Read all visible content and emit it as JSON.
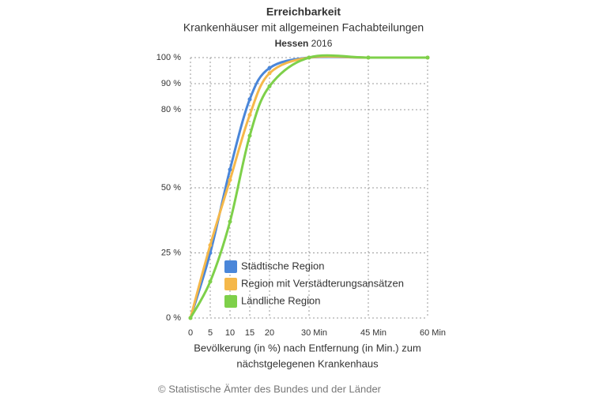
{
  "chart_data": {
    "type": "line",
    "title": "Erreichbarkeit",
    "subtitle": "Krankenhäuser mit allgemeinen Fachabteilungen",
    "region": "Hessen",
    "year": "2016",
    "x_label_lines": [
      "Bevölkerung (in %) nach Entfernung (in Min.) zum",
      "nächstgelegenen Krankenhaus"
    ],
    "source": "© Statistische Ämter des Bundes und der Länder",
    "x": [
      0,
      5,
      10,
      15,
      20,
      30,
      45,
      60
    ],
    "series": [
      {
        "name": "Städtische Region",
        "color": "#4a86d9",
        "values": [
          0,
          25,
          57,
          84,
          96,
          100,
          100,
          100
        ]
      },
      {
        "name": "Region mit Verstädterungsansätzen",
        "color": "#f5b84a",
        "values": [
          0,
          28,
          53,
          78,
          94,
          100,
          100,
          100
        ]
      },
      {
        "name": "Ländliche Region",
        "color": "#7ed04a",
        "values": [
          0,
          14,
          37,
          70,
          89,
          100,
          100,
          100
        ]
      }
    ],
    "xlim": [
      0,
      60
    ],
    "xticks": [
      0,
      5,
      10,
      15,
      20,
      {
        "value": 30,
        "label": "30 Min"
      },
      {
        "value": 45,
        "label": "45 Min"
      },
      {
        "value": 60,
        "label": "60 Min"
      }
    ],
    "ylim": [
      0,
      100
    ],
    "yticks": [
      {
        "value": 0,
        "label": "0 %"
      },
      {
        "value": 25,
        "label": "25 %"
      },
      {
        "value": 50,
        "label": "50 %"
      },
      {
        "value": 80,
        "label": "80 %"
      },
      {
        "value": 90,
        "label": "90 %"
      },
      {
        "value": 100,
        "label": "100 %"
      }
    ],
    "grid": true,
    "legend": "bottom-left"
  }
}
